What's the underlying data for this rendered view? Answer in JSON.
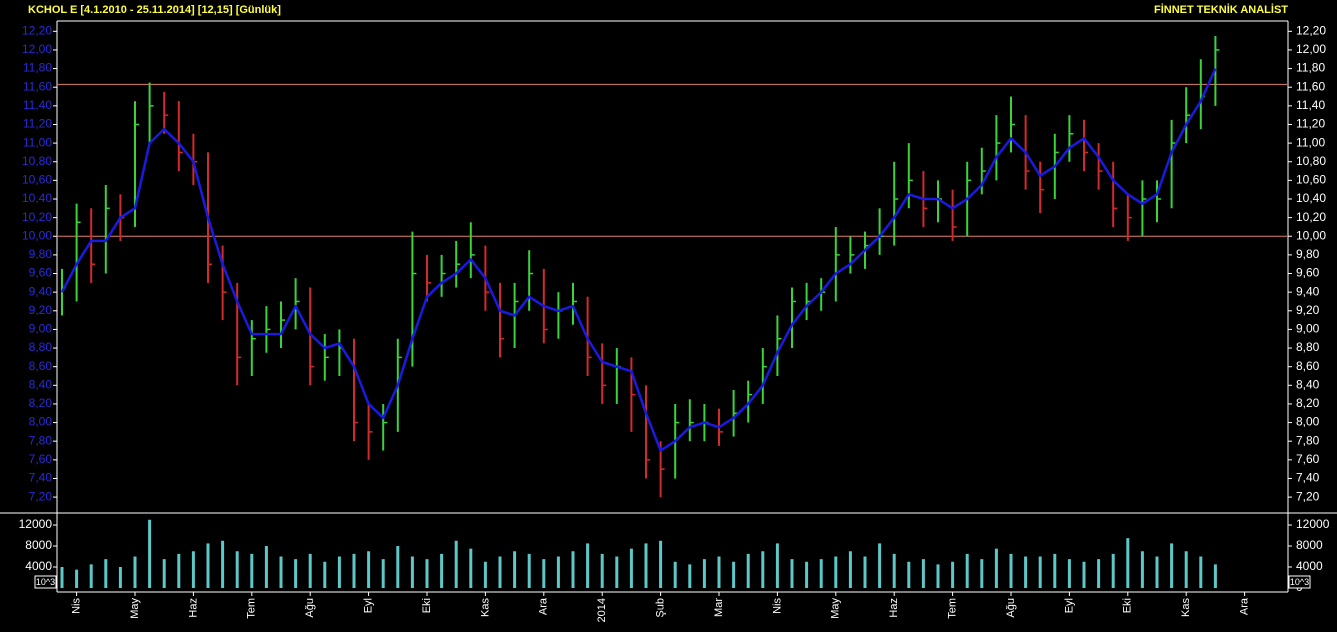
{
  "chart_data": [
    {
      "type": "hlc",
      "title": "KCHOL E  [4.1.2010 - 25.11.2014]  [12,15]  [Günlük]",
      "source": "FİNNET TEKNİK ANALİST",
      "categories": [
        null,
        "Nis",
        null,
        null,
        null,
        "May",
        null,
        null,
        null,
        "Haz",
        null,
        null,
        null,
        "Tem",
        null,
        null,
        null,
        "Ağu",
        null,
        null,
        null,
        "Eyl",
        null,
        null,
        null,
        "Eki",
        null,
        null,
        null,
        "Kas",
        null,
        null,
        null,
        "Ara",
        null,
        null,
        null,
        "2014",
        null,
        null,
        null,
        "Şub",
        null,
        null,
        null,
        "Mar",
        null,
        null,
        null,
        "Nis",
        null,
        null,
        null,
        "May",
        null,
        null,
        null,
        "Haz",
        null,
        null,
        null,
        "Tem",
        null,
        null,
        null,
        "Ağu",
        null,
        null,
        null,
        "Eyl",
        null,
        null,
        null,
        "Eki",
        null,
        null,
        null,
        "Kas",
        null,
        null,
        null,
        "Ara"
      ],
      "high": [
        9.65,
        10.35,
        10.3,
        10.55,
        10.45,
        11.45,
        11.65,
        11.55,
        11.45,
        11.1,
        10.9,
        9.9,
        9.5,
        9.1,
        9.25,
        9.3,
        9.55,
        9.45,
        8.95,
        9.0,
        8.9,
        8.2,
        8.2,
        8.9,
        10.05,
        9.8,
        9.8,
        9.95,
        10.15,
        9.9,
        9.5,
        9.5,
        9.85,
        9.65,
        9.4,
        9.5,
        9.35,
        8.85,
        8.8,
        8.7,
        8.4,
        7.8,
        8.2,
        8.25,
        8.2,
        8.15,
        8.35,
        8.45,
        8.8,
        9.15,
        9.45,
        9.5,
        9.55,
        10.1,
        10.0,
        10.05,
        10.3,
        10.8,
        11.0,
        10.7,
        10.6,
        10.5,
        10.8,
        10.95,
        11.3,
        11.5,
        11.3,
        10.8,
        11.1,
        11.3,
        11.25,
        11.0,
        10.8,
        10.45,
        10.6,
        10.6,
        11.25,
        11.6,
        11.9,
        12.15,
        null,
        null
      ],
      "low": [
        9.15,
        9.3,
        9.5,
        9.6,
        9.95,
        10.1,
        11.0,
        11.1,
        10.7,
        10.55,
        9.5,
        9.1,
        8.4,
        8.5,
        8.75,
        8.8,
        9.0,
        8.4,
        8.45,
        8.5,
        7.8,
        7.6,
        7.7,
        7.9,
        8.6,
        9.3,
        9.35,
        9.45,
        9.55,
        9.2,
        8.7,
        8.8,
        9.2,
        8.85,
        8.9,
        9.05,
        8.5,
        8.2,
        8.2,
        7.9,
        7.4,
        7.2,
        7.4,
        7.8,
        7.8,
        7.75,
        7.85,
        8.0,
        8.2,
        8.5,
        8.8,
        9.1,
        9.2,
        9.3,
        9.6,
        9.65,
        9.8,
        9.9,
        10.3,
        10.1,
        10.15,
        9.95,
        10.0,
        10.45,
        10.6,
        10.9,
        10.5,
        10.25,
        10.4,
        10.8,
        10.7,
        10.5,
        10.1,
        9.95,
        10.0,
        10.15,
        10.3,
        11.0,
        11.15,
        11.4,
        null,
        null
      ],
      "close": [
        9.45,
        10.15,
        9.7,
        10.3,
        10.2,
        11.2,
        11.4,
        11.3,
        10.9,
        10.8,
        9.7,
        9.4,
        8.7,
        8.9,
        9.0,
        9.1,
        9.3,
        8.6,
        8.7,
        8.8,
        8.0,
        7.9,
        8.0,
        8.7,
        9.6,
        9.5,
        9.6,
        9.7,
        9.8,
        9.4,
        8.9,
        9.3,
        9.6,
        9.0,
        9.2,
        9.3,
        8.7,
        8.4,
        8.6,
        8.3,
        7.6,
        7.5,
        8.0,
        8.0,
        8.0,
        7.9,
        8.1,
        8.3,
        8.6,
        8.9,
        9.3,
        9.3,
        9.4,
        9.8,
        9.8,
        9.9,
        10.0,
        10.4,
        10.6,
        10.3,
        10.4,
        10.1,
        10.6,
        10.7,
        11.0,
        11.2,
        10.7,
        10.5,
        10.9,
        11.1,
        10.9,
        10.7,
        10.3,
        10.2,
        10.4,
        10.4,
        11.0,
        11.3,
        11.5,
        12.0,
        null,
        null
      ],
      "up_color": "#3ad43a",
      "down_color": "#d42a2a",
      "ma": {
        "color": "#1a1ae0",
        "values": [
          9.4,
          9.7,
          9.95,
          9.95,
          10.2,
          10.3,
          11.0,
          11.15,
          11.0,
          10.8,
          10.2,
          9.7,
          9.3,
          8.95,
          8.95,
          8.95,
          9.25,
          8.95,
          8.8,
          8.85,
          8.6,
          8.2,
          8.05,
          8.4,
          8.9,
          9.35,
          9.5,
          9.6,
          9.75,
          9.55,
          9.2,
          9.15,
          9.35,
          9.25,
          9.2,
          9.25,
          8.9,
          8.65,
          8.6,
          8.55,
          8.1,
          7.7,
          7.8,
          7.95,
          8.0,
          7.95,
          8.05,
          8.2,
          8.4,
          8.75,
          9.05,
          9.25,
          9.4,
          9.6,
          9.7,
          9.85,
          10.0,
          10.2,
          10.45,
          10.4,
          10.4,
          10.3,
          10.4,
          10.55,
          10.85,
          11.05,
          10.9,
          10.65,
          10.75,
          10.95,
          11.05,
          10.85,
          10.6,
          10.45,
          10.35,
          10.45,
          10.9,
          11.2,
          11.45,
          11.8,
          null,
          null
        ]
      },
      "hlines": [
        11.63,
        10.0
      ],
      "hline_color": "#e0806c",
      "ylim": [
        7.04,
        12.3
      ],
      "yticks": [
        {
          "value": 7.2,
          "label": "7,20"
        },
        {
          "value": 7.4,
          "label": "7,40"
        },
        {
          "value": 7.6,
          "label": "7,60"
        },
        {
          "value": 7.8,
          "label": "7,80"
        },
        {
          "value": 8.0,
          "label": "8,00"
        },
        {
          "value": 8.2,
          "label": "8,20"
        },
        {
          "value": 8.4,
          "label": "8,40"
        },
        {
          "value": 8.6,
          "label": "8,60"
        },
        {
          "value": 8.8,
          "label": "8,80"
        },
        {
          "value": 9.0,
          "label": "9,00"
        },
        {
          "value": 9.2,
          "label": "9,20"
        },
        {
          "value": 9.4,
          "label": "9,40"
        },
        {
          "value": 9.6,
          "label": "9,60"
        },
        {
          "value": 9.8,
          "label": "9,80"
        },
        {
          "value": 10.0,
          "label": "10,00"
        },
        {
          "value": 10.2,
          "label": "10,20"
        },
        {
          "value": 10.4,
          "label": "10,40"
        },
        {
          "value": 10.6,
          "label": "10,60"
        },
        {
          "value": 10.8,
          "label": "10,80"
        },
        {
          "value": 11.0,
          "label": "11,00"
        },
        {
          "value": 11.2,
          "label": "11,20"
        },
        {
          "value": 11.4,
          "label": "11,40"
        },
        {
          "value": 11.6,
          "label": "11,60"
        },
        {
          "value": 11.8,
          "label": "11,80"
        },
        {
          "value": 12.0,
          "label": "12,00"
        },
        {
          "value": 12.2,
          "label": "12,20"
        }
      ]
    },
    {
      "type": "bar",
      "values": [
        4000,
        3500,
        4500,
        5500,
        4000,
        6000,
        13000,
        5500,
        6500,
        7000,
        8500,
        9000,
        7000,
        6500,
        8000,
        6000,
        5500,
        6500,
        5000,
        6000,
        6500,
        7000,
        5500,
        8000,
        6000,
        5500,
        6500,
        9000,
        7500,
        5000,
        6000,
        7000,
        6500,
        5500,
        6000,
        7000,
        8500,
        6500,
        6000,
        7500,
        8500,
        9000,
        5000,
        4500,
        5500,
        6000,
        5000,
        6500,
        7000,
        8500,
        5500,
        5000,
        5500,
        6000,
        7000,
        6000,
        8500,
        6500,
        5000,
        5500,
        4500,
        5000,
        6500,
        5500,
        7500,
        6500,
        6000,
        6000,
        6500,
        5500,
        5000,
        5500,
        6500,
        9500,
        7000,
        6000,
        8500,
        7000,
        6000,
        4500,
        null,
        null
      ],
      "color": "#5cc8c8",
      "ylim": [
        0,
        14100
      ],
      "yticks": [
        0,
        4000,
        8000,
        12000
      ],
      "scale_label": "10^3"
    }
  ]
}
